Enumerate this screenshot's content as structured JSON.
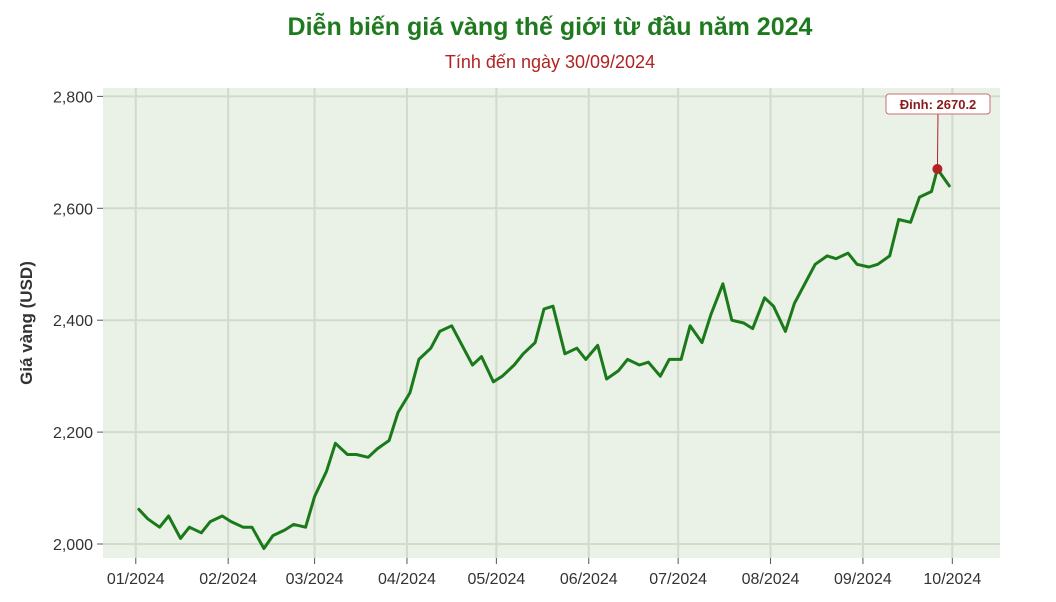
{
  "chart_data": {
    "type": "line",
    "title": "Diễn biến giá vàng thế giới từ đầu năm 2024",
    "subtitle": "Tính đến ngày 30/09/2024",
    "ylabel": "Giá vàng (USD)",
    "xlabel": "",
    "ylim": [
      1975,
      2815
    ],
    "yticks": [
      2000,
      2200,
      2400,
      2600,
      2800
    ],
    "ytick_labels": [
      "2,000",
      "2,200",
      "2,400",
      "2,600",
      "2,800"
    ],
    "xticks": [
      "2024-01-01",
      "2024-02-01",
      "2024-03-01",
      "2024-04-01",
      "2024-05-01",
      "2024-06-01",
      "2024-07-01",
      "2024-08-01",
      "2024-09-01",
      "2024-10-01"
    ],
    "xtick_labels": [
      "01/2024",
      "02/2024",
      "03/2024",
      "04/2024",
      "05/2024",
      "06/2024",
      "07/2024",
      "08/2024",
      "09/2024",
      "10/2024"
    ],
    "xlim": [
      "2023-12-21",
      "2024-10-17"
    ],
    "grid": true,
    "series": [
      {
        "color": "#1a7a1a",
        "x": [
          "2024-01-02",
          "2024-01-05",
          "2024-01-09",
          "2024-01-12",
          "2024-01-16",
          "2024-01-19",
          "2024-01-23",
          "2024-01-26",
          "2024-01-30",
          "2024-02-02",
          "2024-02-06",
          "2024-02-09",
          "2024-02-13",
          "2024-02-16",
          "2024-02-20",
          "2024-02-23",
          "2024-02-27",
          "2024-03-01",
          "2024-03-05",
          "2024-03-08",
          "2024-03-12",
          "2024-03-15",
          "2024-03-19",
          "2024-03-22",
          "2024-03-26",
          "2024-03-29",
          "2024-04-02",
          "2024-04-05",
          "2024-04-09",
          "2024-04-12",
          "2024-04-16",
          "2024-04-19",
          "2024-04-23",
          "2024-04-26",
          "2024-04-30",
          "2024-05-03",
          "2024-05-07",
          "2024-05-10",
          "2024-05-14",
          "2024-05-17",
          "2024-05-20",
          "2024-05-24",
          "2024-05-28",
          "2024-05-31",
          "2024-06-04",
          "2024-06-07",
          "2024-06-11",
          "2024-06-14",
          "2024-06-18",
          "2024-06-21",
          "2024-06-25",
          "2024-06-28",
          "2024-07-02",
          "2024-07-05",
          "2024-07-09",
          "2024-07-12",
          "2024-07-16",
          "2024-07-19",
          "2024-07-23",
          "2024-07-26",
          "2024-07-30",
          "2024-08-02",
          "2024-08-06",
          "2024-08-09",
          "2024-08-13",
          "2024-08-16",
          "2024-08-20",
          "2024-08-23",
          "2024-08-27",
          "2024-08-30",
          "2024-09-03",
          "2024-09-06",
          "2024-09-10",
          "2024-09-13",
          "2024-09-17",
          "2024-09-20",
          "2024-09-24",
          "2024-09-26",
          "2024-09-30"
        ],
        "values": [
          2062,
          2045,
          2030,
          2050,
          2010,
          2030,
          2020,
          2040,
          2050,
          2040,
          2030,
          2030,
          1992,
          2015,
          2025,
          2035,
          2030,
          2085,
          2130,
          2180,
          2160,
          2160,
          2155,
          2170,
          2185,
          2235,
          2270,
          2330,
          2350,
          2380,
          2390,
          2360,
          2320,
          2335,
          2290,
          2300,
          2320,
          2340,
          2360,
          2420,
          2425,
          2340,
          2350,
          2330,
          2355,
          2295,
          2310,
          2330,
          2320,
          2325,
          2300,
          2330,
          2330,
          2390,
          2360,
          2410,
          2465,
          2400,
          2395,
          2385,
          2440,
          2425,
          2380,
          2430,
          2470,
          2500,
          2515,
          2510,
          2520,
          2500,
          2495,
          2500,
          2515,
          2580,
          2575,
          2620,
          2630,
          2670.2,
          2640
        ]
      }
    ],
    "annotation": {
      "x": "2024-09-26",
      "y": 2670.2,
      "label": "Đỉnh: 2670.2"
    }
  }
}
